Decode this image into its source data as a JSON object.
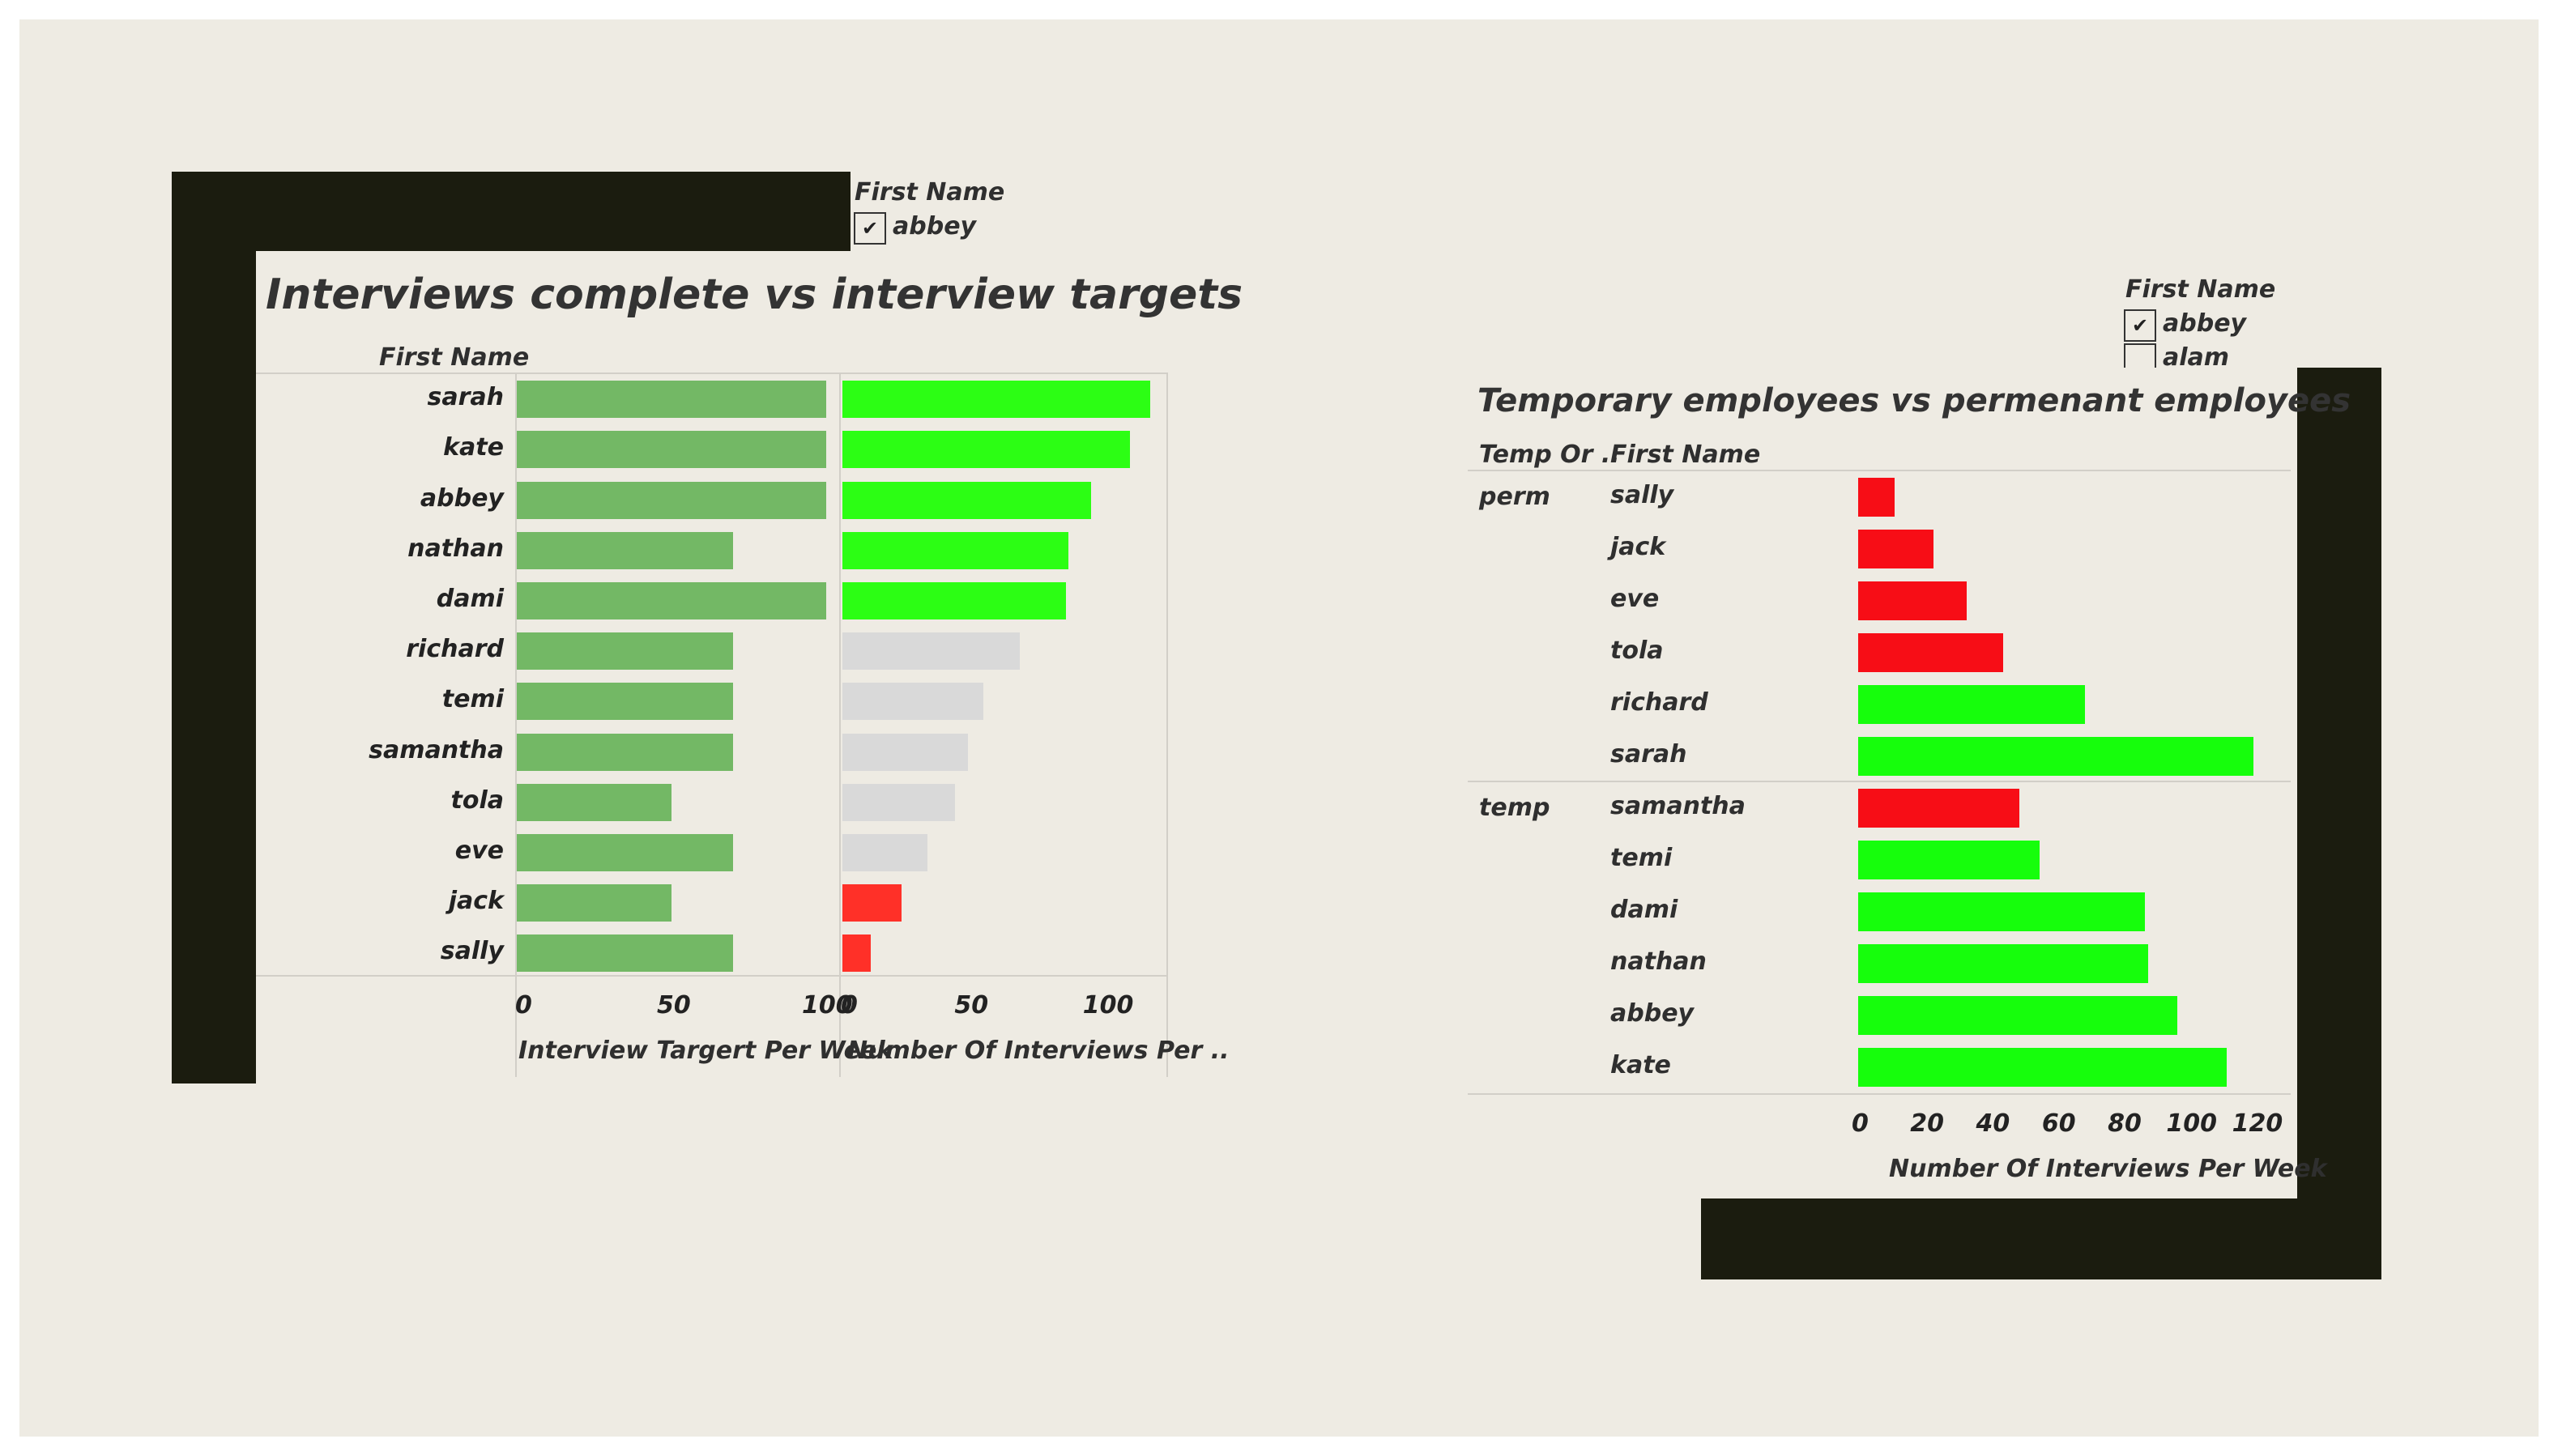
{
  "colors": {
    "background": "#eeebe3",
    "frame": "#1b1c0f",
    "target_bar": "#73b865",
    "green": "#2cfe14",
    "grey": "#d9d9d9",
    "red_left": "#ff3028",
    "red_right": "#f70d16",
    "green_right": "#16fe0c"
  },
  "left": {
    "filter": {
      "title": "First Name",
      "item": "abbey",
      "checked": true,
      "check_glyph": "✔"
    },
    "title": "Interviews complete vs interview targets",
    "row_header": "First Name",
    "axis1_label": "Interview Targert Per Week",
    "axis2_label": "Number Of Interviews Per ..",
    "axis1_ticks": [
      "0",
      "50",
      "100"
    ],
    "axis2_ticks": [
      "0",
      "50",
      "100"
    ]
  },
  "right": {
    "filter": {
      "title": "First Name",
      "items": [
        "abbey",
        "alam"
      ],
      "checked": [
        true,
        false
      ],
      "check_glyph": "✔"
    },
    "title": "Temporary employees vs permenant employees",
    "col_header_1": "Temp Or ..",
    "col_header_2": "First Name",
    "axis_label": "Number Of Interviews Per Week",
    "axis_ticks": [
      "0",
      "20",
      "40",
      "60",
      "80",
      "100",
      "120"
    ]
  },
  "chart_data": [
    {
      "type": "bar",
      "orientation": "horizontal",
      "title": "Interviews complete vs interview targets",
      "categories": [
        "sarah",
        "kate",
        "abbey",
        "nathan",
        "dami",
        "richard",
        "temi",
        "samantha",
        "tola",
        "eve",
        "jack",
        "sally"
      ],
      "series": [
        {
          "name": "Interview Targert Per Week",
          "values": [
            100,
            100,
            100,
            70,
            100,
            70,
            70,
            70,
            50,
            70,
            50,
            70
          ],
          "xlim": [
            0,
            100
          ]
        },
        {
          "name": "Number Of Interviews Per ..",
          "values": [
            120,
            112,
            97,
            88,
            87,
            69,
            55,
            49,
            44,
            33,
            23,
            11
          ],
          "colors": [
            "green",
            "green",
            "green",
            "green",
            "green",
            "grey",
            "grey",
            "grey",
            "grey",
            "grey",
            "red",
            "red"
          ],
          "xlim": [
            0,
            125
          ]
        }
      ],
      "ylabel": "First Name",
      "grid": false
    },
    {
      "type": "bar",
      "orientation": "horizontal",
      "title": "Temporary employees vs permenant employees",
      "groups": [
        {
          "name": "perm",
          "categories": [
            "sally",
            "jack",
            "eve",
            "tola",
            "richard",
            "sarah"
          ],
          "values": [
            11,
            23,
            33,
            44,
            69,
            120
          ],
          "colors": [
            "red",
            "red",
            "red",
            "red",
            "green",
            "green"
          ]
        },
        {
          "name": "temp",
          "categories": [
            "samantha",
            "temi",
            "dami",
            "nathan",
            "abbey",
            "kate"
          ],
          "values": [
            49,
            55,
            87,
            88,
            97,
            112
          ],
          "colors": [
            "red",
            "green",
            "green",
            "green",
            "green",
            "green"
          ]
        }
      ],
      "xlabel": "Number Of Interviews Per Week",
      "xlim": [
        0,
        125
      ],
      "grid": false
    }
  ]
}
